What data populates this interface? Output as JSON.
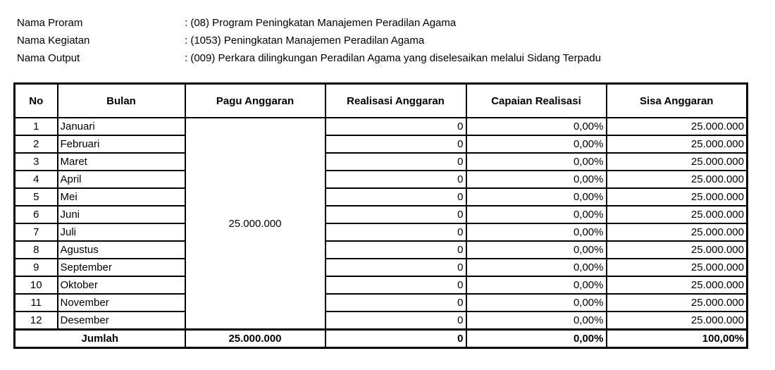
{
  "meta": [
    {
      "label": "Nama Proram",
      "value": ": (08)  Program Peningkatan Manajemen Peradilan Agama"
    },
    {
      "label": "Nama Kegiatan",
      "value": ": (1053)  Peningkatan Manajemen Peradilan Agama"
    },
    {
      "label": "Nama Output",
      "value": ": (009)  Perkara dilingkungan Peradilan Agama yang diselesaikan melalui Sidang Terpadu"
    }
  ],
  "table": {
    "headers": [
      "No",
      "Bulan",
      "Pagu Anggaran",
      "Realisasi Anggaran",
      "Capaian Realisasi",
      "Sisa Anggaran"
    ],
    "pagu": "25.000.000",
    "rows": [
      {
        "no": "1",
        "bulan": "Januari",
        "realisasi": "0",
        "capaian": "0,00%",
        "sisa": "25.000.000"
      },
      {
        "no": "2",
        "bulan": "Februari",
        "realisasi": "0",
        "capaian": "0,00%",
        "sisa": "25.000.000"
      },
      {
        "no": "3",
        "bulan": "Maret",
        "realisasi": "0",
        "capaian": "0,00%",
        "sisa": "25.000.000"
      },
      {
        "no": "4",
        "bulan": "April",
        "realisasi": "0",
        "capaian": "0,00%",
        "sisa": "25.000.000"
      },
      {
        "no": "5",
        "bulan": "Mei",
        "realisasi": "0",
        "capaian": "0,00%",
        "sisa": "25.000.000"
      },
      {
        "no": "6",
        "bulan": "Juni",
        "realisasi": "0",
        "capaian": "0,00%",
        "sisa": "25.000.000"
      },
      {
        "no": "7",
        "bulan": "Juli",
        "realisasi": "0",
        "capaian": "0,00%",
        "sisa": "25.000.000"
      },
      {
        "no": "8",
        "bulan": "Agustus",
        "realisasi": "0",
        "capaian": "0,00%",
        "sisa": "25.000.000"
      },
      {
        "no": "9",
        "bulan": "September",
        "realisasi": "0",
        "capaian": "0,00%",
        "sisa": "25.000.000"
      },
      {
        "no": "10",
        "bulan": "Oktober",
        "realisasi": "0",
        "capaian": "0,00%",
        "sisa": "25.000.000"
      },
      {
        "no": "11",
        "bulan": "November",
        "realisasi": "0",
        "capaian": "0,00%",
        "sisa": "25.000.000"
      },
      {
        "no": "12",
        "bulan": "Desember",
        "realisasi": "0",
        "capaian": "0,00%",
        "sisa": "25.000.000"
      }
    ],
    "total": {
      "label": "Jumlah",
      "pagu": "25.000.000",
      "realisasi": "0",
      "capaian": "0,00%",
      "sisa": "100,00%"
    }
  }
}
